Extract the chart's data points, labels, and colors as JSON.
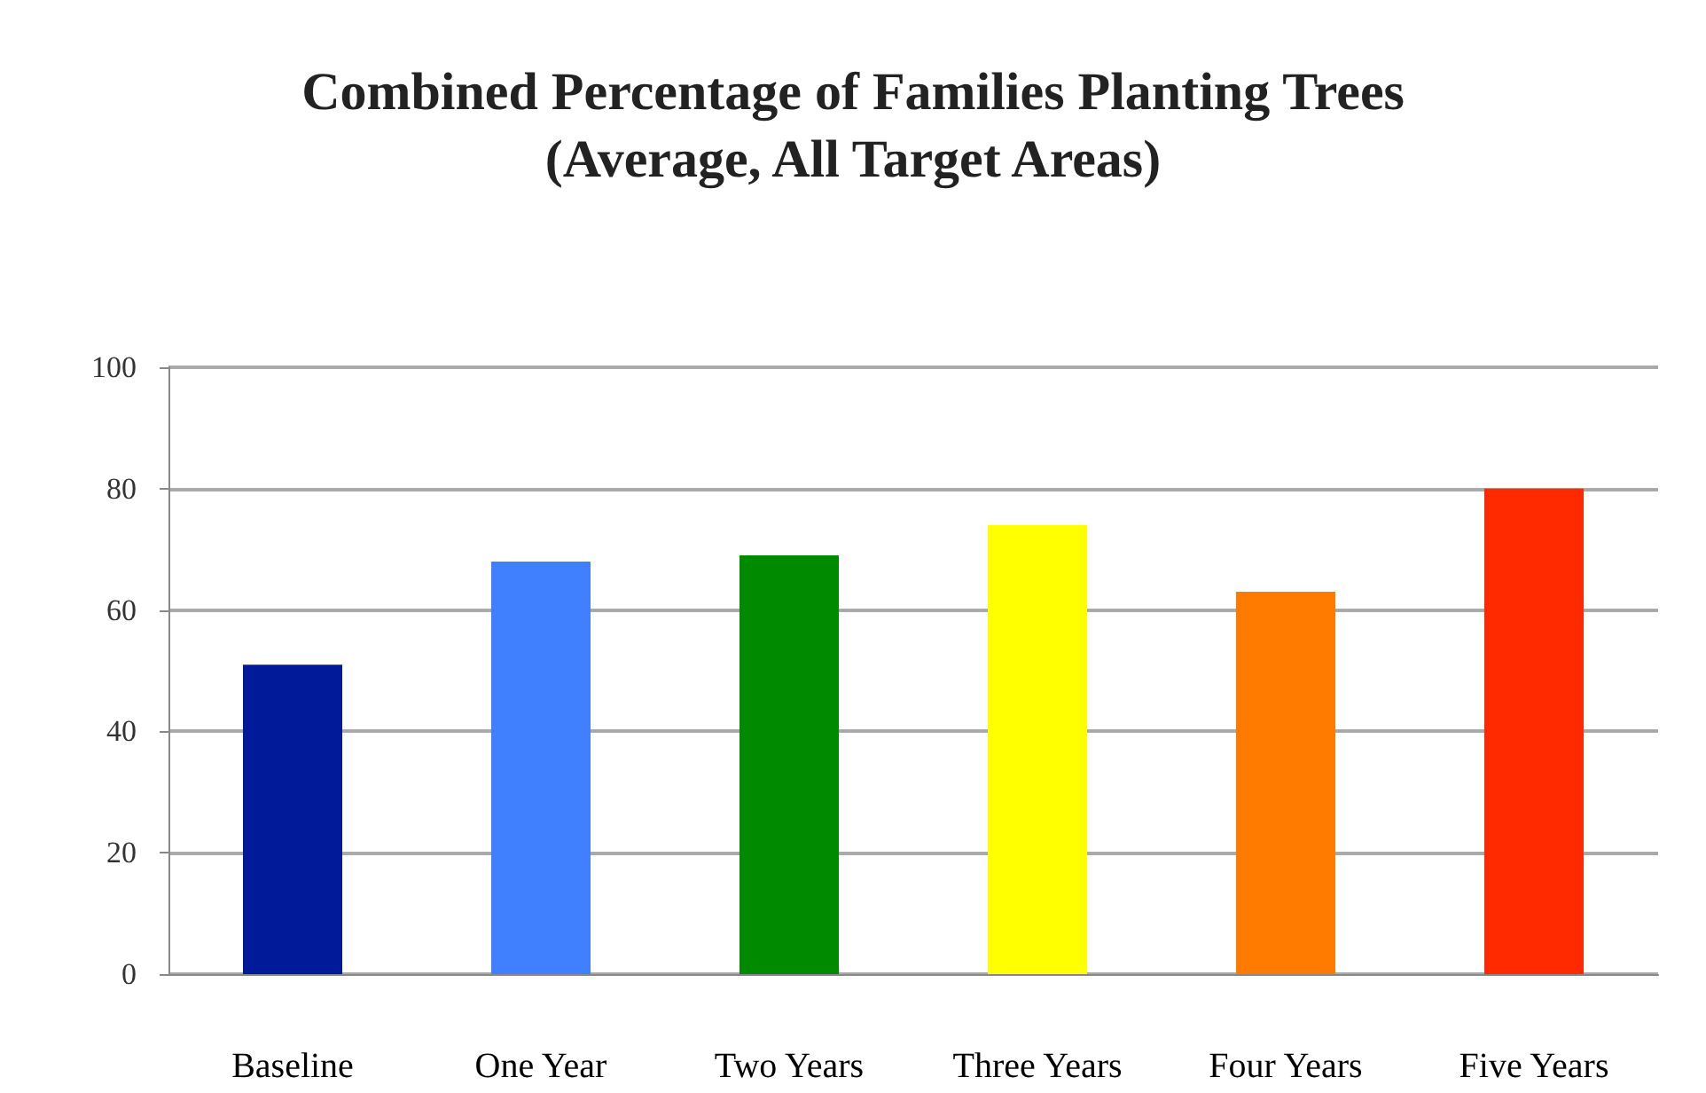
{
  "chart_data": {
    "type": "bar",
    "title": "Combined Percentage of Families Planting Trees",
    "subtitle": "(Average, All Target Areas)",
    "categories": [
      "Baseline",
      "One Year",
      "Two Years",
      "Three Years",
      "Four Years",
      "Five Years"
    ],
    "values": [
      51,
      68,
      69,
      74,
      63,
      80
    ],
    "colors": [
      "#001a99",
      "#4080ff",
      "#008a00",
      "#ffff00",
      "#ff7b00",
      "#ff2a00"
    ],
    "ylim": [
      0,
      100
    ],
    "yticks": [
      0,
      20,
      40,
      60,
      80,
      100
    ],
    "grid": "y"
  }
}
